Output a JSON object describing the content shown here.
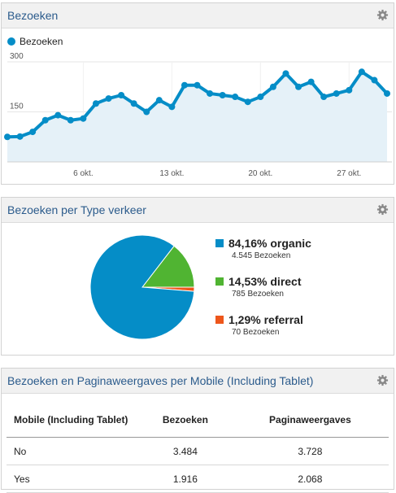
{
  "widget1": {
    "title": "Bezoeken",
    "legend_label": "Bezoeken",
    "colors": {
      "line": "#058dc7",
      "fill": "#e5f1f8"
    }
  },
  "chart_data": {
    "type": "line",
    "title": "Bezoeken",
    "series": [
      {
        "name": "Bezoeken",
        "values": [
          75,
          76,
          90,
          125,
          140,
          125,
          130,
          175,
          190,
          200,
          175,
          150,
          185,
          165,
          230,
          230,
          205,
          200,
          195,
          180,
          195,
          225,
          265,
          225,
          240,
          195,
          205,
          215,
          270,
          245,
          205
        ]
      }
    ],
    "x_tick_labels": [
      "6 okt.",
      "13 okt.",
      "20 okt.",
      "27 okt."
    ],
    "x_tick_indices": [
      6,
      13,
      20,
      27
    ],
    "y_tick_labels": [
      "300",
      "150"
    ],
    "y_ticks": [
      300,
      150
    ],
    "ylim": [
      0,
      300
    ],
    "grid": true
  },
  "widget2": {
    "title": "Bezoeken per Type verkeer",
    "items": [
      {
        "pct": "84,16% organic",
        "sub": "4.545 Bezoeken",
        "color": "#058dc7",
        "value": 84.16
      },
      {
        "pct": "14,53% direct",
        "sub": "785 Bezoeken",
        "color": "#50b432",
        "value": 14.53
      },
      {
        "pct": "1,29% referral",
        "sub": "70 Bezoeken",
        "color": "#ed561b",
        "value": 1.29
      }
    ]
  },
  "widget3": {
    "title": "Bezoeken en Paginaweergaves per Mobile (Including Tablet)",
    "columns": [
      "Mobile (Including Tablet)",
      "Bezoeken",
      "Paginaweergaves"
    ],
    "rows": [
      [
        "No",
        "3.484",
        "3.728"
      ],
      [
        "Yes",
        "1.916",
        "2.068"
      ]
    ]
  }
}
